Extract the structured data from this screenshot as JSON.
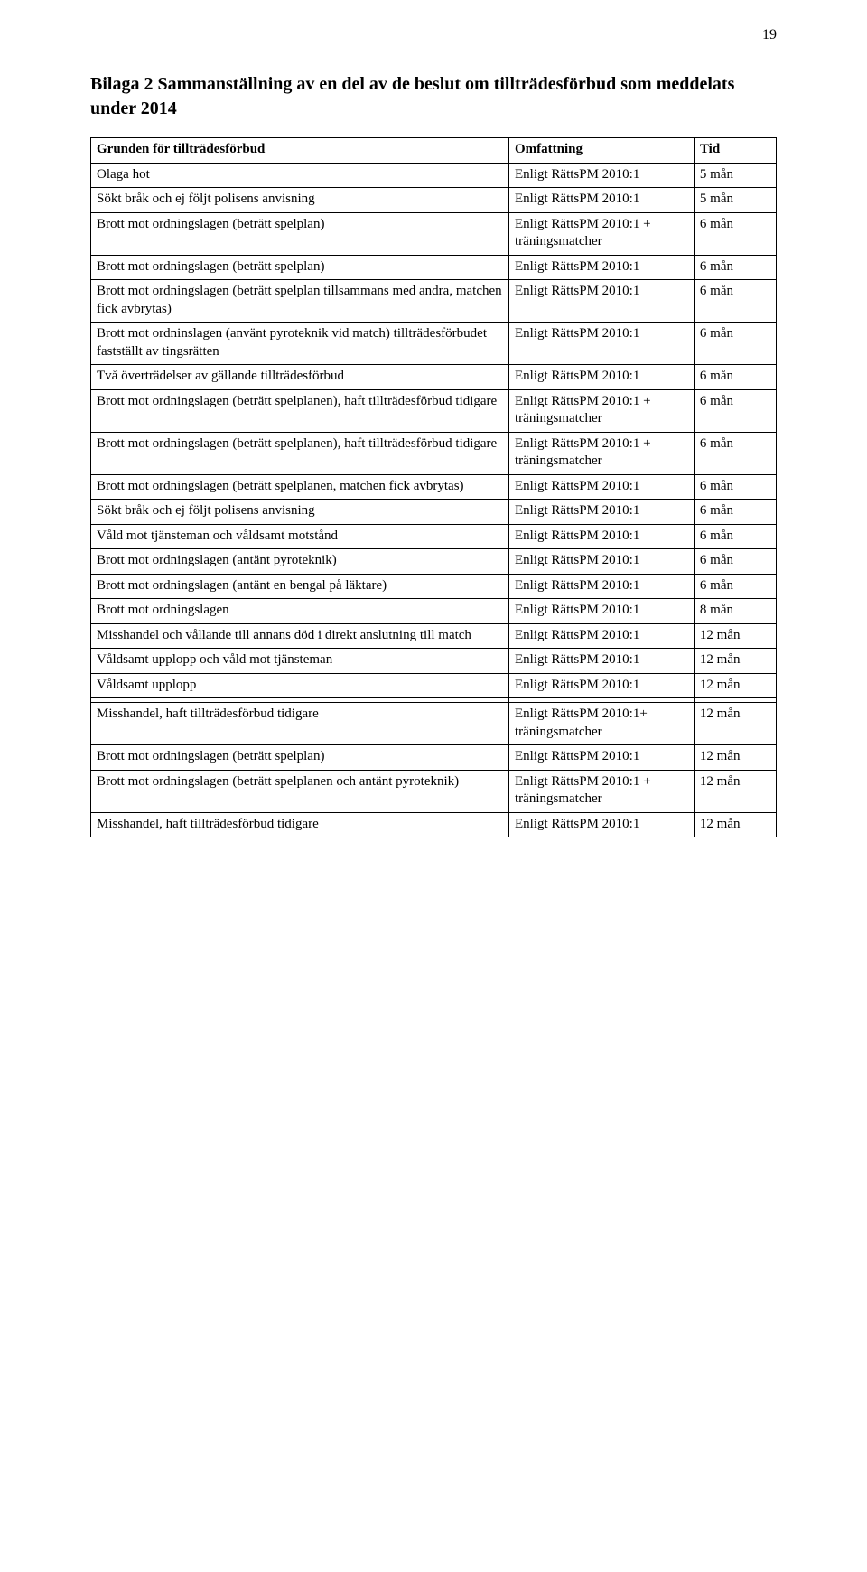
{
  "page_number": "19",
  "title": "Bilaga 2 Sammanställning av en del av de beslut om tillträdesförbud som meddelats under 2014",
  "table": {
    "columns": [
      "Grunden för tillträdesförbud",
      "Omfattning",
      "Tid"
    ],
    "rows": [
      [
        "Olaga hot",
        "Enligt RättsPM 2010:1",
        "5 mån"
      ],
      [
        "Sökt bråk och ej följt polisens anvisning",
        "Enligt RättsPM 2010:1",
        "5 mån"
      ],
      [
        "Brott mot ordningslagen (beträtt spelplan)",
        "Enligt RättsPM 2010:1 + träningsmatcher",
        "6 mån"
      ],
      [
        "Brott mot ordningslagen (beträtt spelplan)",
        "Enligt RättsPM 2010:1",
        "6 mån"
      ],
      [
        "Brott mot ordningslagen (beträtt spelplan tillsammans med andra, matchen fick avbrytas)",
        "Enligt RättsPM 2010:1",
        "6 mån"
      ],
      [
        "Brott mot ordninslagen (använt pyroteknik vid match) tillträdesförbudet fastställt av tingsrätten",
        "Enligt RättsPM 2010:1",
        "6 mån"
      ],
      [
        "Två överträdelser av gällande tillträdesförbud",
        "Enligt RättsPM 2010:1",
        "6 mån"
      ],
      [
        "Brott mot ordningslagen (beträtt spelplanen), haft tillträdesförbud tidigare",
        "Enligt RättsPM 2010:1 + träningsmatcher",
        "6 mån"
      ],
      [
        "Brott mot ordningslagen (beträtt spelplanen), haft tillträdesförbud tidigare",
        "Enligt RättsPM 2010:1 + träningsmatcher",
        "6 mån"
      ],
      [
        "Brott mot ordningslagen (beträtt spelplanen, matchen fick avbrytas)",
        "Enligt RättsPM 2010:1",
        "6 mån"
      ],
      [
        "Sökt bråk och ej följt polisens anvisning",
        "Enligt RättsPM 2010:1",
        "6 mån"
      ],
      [
        "Våld mot tjänsteman och våldsamt motstånd",
        "Enligt RättsPM 2010:1",
        "6 mån"
      ],
      [
        "Brott mot ordningslagen (antänt pyroteknik)",
        "Enligt RättsPM 2010:1",
        "6 mån"
      ],
      [
        "Brott mot ordningslagen (antänt en bengal på läktare)",
        "Enligt RättsPM 2010:1",
        "6 mån"
      ],
      [
        "Brott mot ordningslagen",
        "Enligt RättsPM 2010:1",
        "8 mån"
      ],
      [
        "Misshandel och vållande till annans död i direkt anslutning till match",
        "Enligt RättsPM 2010:1",
        "12 mån"
      ],
      [
        "Våldsamt upplopp och våld mot tjänsteman",
        "Enligt RättsPM 2010:1",
        "12 mån"
      ],
      [
        "Våldsamt upplopp",
        "Enligt RättsPM 2010:1",
        "12 mån"
      ]
    ],
    "rows2": [
      [
        "Misshandel, haft tillträdesförbud tidigare",
        "Enligt RättsPM 2010:1+ träningsmatcher",
        "12 mån"
      ],
      [
        "Brott mot ordningslagen (beträtt spelplan)",
        "Enligt RättsPM 2010:1",
        "12 mån"
      ],
      [
        "Brott mot ordningslagen (beträtt spelplanen och antänt pyroteknik)",
        "Enligt RättsPM 2010:1 + träningsmatcher",
        "12 mån"
      ],
      [
        "Misshandel, haft tillträdesförbud tidigare",
        "Enligt RättsPM 2010:1",
        "12 mån"
      ]
    ]
  },
  "style": {
    "font_family": "Georgia, 'Times New Roman', serif",
    "title_fontsize": 20,
    "body_fontsize": 15,
    "page_number_fontsize": 16,
    "text_color": "#000000",
    "background_color": "#ffffff",
    "border_color": "#000000"
  }
}
